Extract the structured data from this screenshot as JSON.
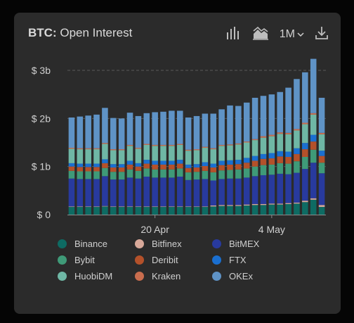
{
  "header": {
    "symbol": "BTC:",
    "metric": "Open Interest",
    "range_label": "1M"
  },
  "icons": {
    "bar_chart": "bar-chart-icon",
    "area_chart": "area-chart-icon",
    "range_dropdown": "chevron-down-icon",
    "download": "download-icon"
  },
  "chart_data": {
    "type": "bar",
    "stacked": true,
    "ylim": [
      0,
      3
    ],
    "yticks": [
      {
        "value": 0,
        "label": "$ 0"
      },
      {
        "value": 1,
        "label": "$ 1b"
      },
      {
        "value": 2,
        "label": "$ 2b"
      },
      {
        "value": 3,
        "label": "$ 3b"
      }
    ],
    "xticks": [
      {
        "index": 10,
        "label": "20 Apr"
      },
      {
        "index": 24,
        "label": "4 May"
      }
    ],
    "categories": [
      "1",
      "2",
      "3",
      "4",
      "5",
      "6",
      "7",
      "8",
      "9",
      "10",
      "11",
      "12",
      "13",
      "14",
      "15",
      "16",
      "17",
      "18",
      "19",
      "20",
      "21",
      "22",
      "23",
      "24",
      "25",
      "26",
      "27",
      "28",
      "29",
      "30",
      "31"
    ],
    "series": [
      {
        "name": "Binance",
        "color": "#0e6b63",
        "values": [
          0.16,
          0.16,
          0.16,
          0.16,
          0.17,
          0.16,
          0.16,
          0.16,
          0.16,
          0.16,
          0.16,
          0.16,
          0.16,
          0.16,
          0.16,
          0.16,
          0.16,
          0.17,
          0.18,
          0.18,
          0.18,
          0.19,
          0.2,
          0.2,
          0.21,
          0.21,
          0.22,
          0.23,
          0.26,
          0.31,
          0.16
        ]
      },
      {
        "name": "Bitfinex",
        "color": "#d8a99a",
        "values": [
          0.01,
          0.01,
          0.01,
          0.01,
          0.01,
          0.01,
          0.01,
          0.01,
          0.01,
          0.01,
          0.01,
          0.01,
          0.01,
          0.01,
          0.01,
          0.01,
          0.01,
          0.02,
          0.02,
          0.02,
          0.02,
          0.02,
          0.02,
          0.02,
          0.02,
          0.02,
          0.02,
          0.02,
          0.03,
          0.03,
          0.04
        ]
      },
      {
        "name": "BitMEX",
        "color": "#283a9e",
        "values": [
          0.58,
          0.57,
          0.57,
          0.57,
          0.62,
          0.56,
          0.56,
          0.6,
          0.58,
          0.62,
          0.6,
          0.6,
          0.6,
          0.62,
          0.55,
          0.56,
          0.57,
          0.52,
          0.54,
          0.55,
          0.55,
          0.56,
          0.58,
          0.6,
          0.6,
          0.62,
          0.6,
          0.62,
          0.66,
          0.74,
          0.66
        ]
      },
      {
        "name": "Bybit",
        "color": "#3f9a78",
        "values": [
          0.16,
          0.16,
          0.16,
          0.16,
          0.17,
          0.16,
          0.16,
          0.17,
          0.16,
          0.17,
          0.17,
          0.17,
          0.17,
          0.17,
          0.16,
          0.16,
          0.17,
          0.17,
          0.18,
          0.18,
          0.19,
          0.19,
          0.2,
          0.21,
          0.21,
          0.22,
          0.22,
          0.24,
          0.25,
          0.27,
          0.22
        ]
      },
      {
        "name": "Deribit",
        "color": "#b4512a",
        "values": [
          0.09,
          0.09,
          0.09,
          0.09,
          0.1,
          0.09,
          0.09,
          0.1,
          0.09,
          0.1,
          0.1,
          0.1,
          0.1,
          0.1,
          0.09,
          0.09,
          0.1,
          0.1,
          0.11,
          0.11,
          0.11,
          0.12,
          0.12,
          0.13,
          0.13,
          0.14,
          0.14,
          0.15,
          0.16,
          0.17,
          0.14
        ]
      },
      {
        "name": "FTX",
        "color": "#1a6fd0",
        "values": [
          0.07,
          0.07,
          0.07,
          0.07,
          0.08,
          0.07,
          0.07,
          0.08,
          0.07,
          0.08,
          0.08,
          0.08,
          0.08,
          0.08,
          0.07,
          0.07,
          0.08,
          0.08,
          0.09,
          0.09,
          0.09,
          0.1,
          0.1,
          0.1,
          0.11,
          0.11,
          0.11,
          0.12,
          0.13,
          0.14,
          0.11
        ]
      },
      {
        "name": "HuobiDM",
        "color": "#6fb7a5",
        "values": [
          0.3,
          0.3,
          0.3,
          0.3,
          0.32,
          0.29,
          0.29,
          0.31,
          0.3,
          0.31,
          0.31,
          0.31,
          0.31,
          0.31,
          0.29,
          0.29,
          0.3,
          0.3,
          0.31,
          0.31,
          0.32,
          0.32,
          0.33,
          0.34,
          0.35,
          0.36,
          0.36,
          0.37,
          0.39,
          0.42,
          0.34
        ]
      },
      {
        "name": "Kraken",
        "color": "#c96d4e",
        "values": [
          0.02,
          0.02,
          0.02,
          0.02,
          0.02,
          0.02,
          0.02,
          0.02,
          0.02,
          0.02,
          0.02,
          0.02,
          0.02,
          0.02,
          0.02,
          0.02,
          0.02,
          0.02,
          0.02,
          0.02,
          0.02,
          0.02,
          0.02,
          0.03,
          0.03,
          0.03,
          0.03,
          0.03,
          0.03,
          0.03,
          0.03
        ]
      },
      {
        "name": "OKEx",
        "color": "#5f93c6",
        "values": [
          0.63,
          0.66,
          0.68,
          0.7,
          0.73,
          0.65,
          0.64,
          0.67,
          0.66,
          0.64,
          0.68,
          0.69,
          0.71,
          0.69,
          0.67,
          0.69,
          0.69,
          0.72,
          0.74,
          0.81,
          0.78,
          0.81,
          0.86,
          0.84,
          0.84,
          0.84,
          0.94,
          1.04,
          1.05,
          1.13,
          0.73
        ]
      }
    ]
  }
}
